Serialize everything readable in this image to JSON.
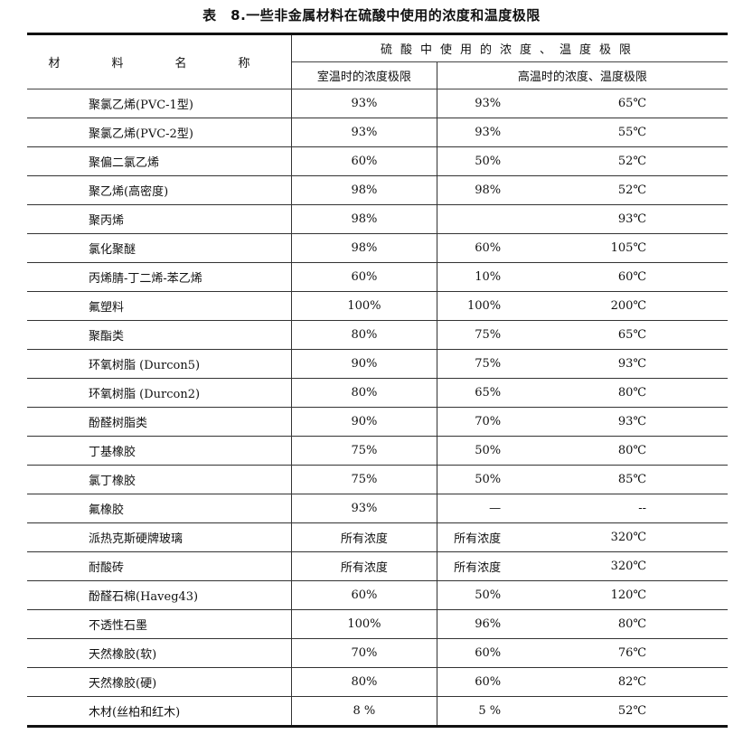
{
  "title": "表　8.一些非金属材料在硫酸中使用的浓度和温度极限",
  "header": {
    "material": "材　料　名　称",
    "group": "硫酸中使用的浓度、温度极限",
    "room_temp": "室温时的浓度极限",
    "high_temp": "高温时的浓度、温度极限"
  },
  "rows": [
    {
      "name": "聚氯乙烯(PVC-1型)",
      "room": "93%",
      "high_conc": "93%",
      "high_temp": "65℃"
    },
    {
      "name": "聚氯乙烯(PVC-2型)",
      "room": "93%",
      "high_conc": "93%",
      "high_temp": "55℃"
    },
    {
      "name": "聚偏二氯乙烯",
      "room": "60%",
      "high_conc": "50%",
      "high_temp": "52℃"
    },
    {
      "name": "聚乙烯(高密度)",
      "room": "98%",
      "high_conc": "98%",
      "high_temp": "52℃"
    },
    {
      "name": "聚丙烯",
      "room": "98%",
      "high_conc": "",
      "high_temp": "93℃"
    },
    {
      "name": "氯化聚醚",
      "room": "98%",
      "high_conc": "60%",
      "high_temp": "105℃"
    },
    {
      "name": "丙烯腈-丁二烯-苯乙烯",
      "room": "60%",
      "high_conc": "10%",
      "high_temp": "60℃"
    },
    {
      "name": "氟塑料",
      "room": "100%",
      "high_conc": "100%",
      "high_temp": "200℃"
    },
    {
      "name": "聚酯类",
      "room": "80%",
      "high_conc": "75%",
      "high_temp": "65℃"
    },
    {
      "name": "环氧树脂 (Durcon5)",
      "room": "90%",
      "high_conc": "75%",
      "high_temp": "93℃"
    },
    {
      "name": "环氧树脂 (Durcon2)",
      "room": "80%",
      "high_conc": "65%",
      "high_temp": "80℃"
    },
    {
      "name": "酚醛树脂类",
      "room": "90%",
      "high_conc": "70%",
      "high_temp": "93℃"
    },
    {
      "name": "丁基橡胶",
      "room": "75%",
      "high_conc": "50%",
      "high_temp": "80℃"
    },
    {
      "name": "氯丁橡胶",
      "room": "75%",
      "high_conc": "50%",
      "high_temp": "85℃"
    },
    {
      "name": "氟橡胶",
      "room": "93%",
      "high_conc": "—",
      "high_temp": "--"
    },
    {
      "name": "派热克斯硬牌玻璃",
      "room": "所有浓度",
      "high_conc": "所有浓度",
      "high_temp": "320℃"
    },
    {
      "name": "耐酸砖",
      "room": "所有浓度",
      "high_conc": "所有浓度",
      "high_temp": "320℃"
    },
    {
      "name": "酚醛石棉(Haveg43)",
      "room": "60%",
      "high_conc": "50%",
      "high_temp": "120℃"
    },
    {
      "name": "不透性石墨",
      "room": "100%",
      "high_conc": "96%",
      "high_temp": "80℃"
    },
    {
      "name": "天然橡胶(软)",
      "room": "70%",
      "high_conc": "60%",
      "high_temp": "76℃"
    },
    {
      "name": "天然橡胶(硬)",
      "room": "80%",
      "high_conc": "60%",
      "high_temp": "82℃"
    },
    {
      "name": "木材(丝柏和红木)",
      "room": "8 %",
      "high_conc": "5 %",
      "high_temp": "52℃"
    }
  ]
}
